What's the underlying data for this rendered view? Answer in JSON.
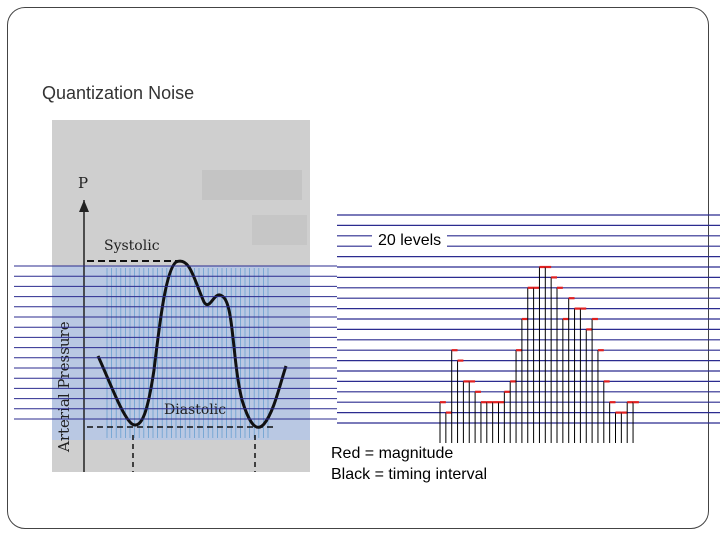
{
  "slide": {
    "title": "Quantization Noise",
    "levels_label": "20 levels",
    "legend": {
      "red": "Red = magnitude",
      "black": "Black = timing interval"
    }
  },
  "waveform_figure": {
    "p_label": "P",
    "y_axis_label": "Arterial Pressure",
    "systolic_label": "Systolic",
    "diastolic_label": "Diastolic"
  },
  "colors": {
    "level_line": "#2b2b8f",
    "magnitude": "#e02020",
    "timing": "#000000",
    "sample_bar": "#4a90c8",
    "photo_bg": "#cfcfcf"
  },
  "quantized_samples": {
    "num_levels": 20,
    "levels": [
      2,
      1,
      7,
      6,
      4,
      4,
      3,
      2,
      2,
      2,
      2,
      3,
      4,
      7,
      10,
      13,
      13,
      15,
      15,
      14,
      13,
      10,
      12,
      11,
      11,
      9,
      10,
      7,
      4,
      2,
      1,
      1,
      2,
      2
    ]
  }
}
